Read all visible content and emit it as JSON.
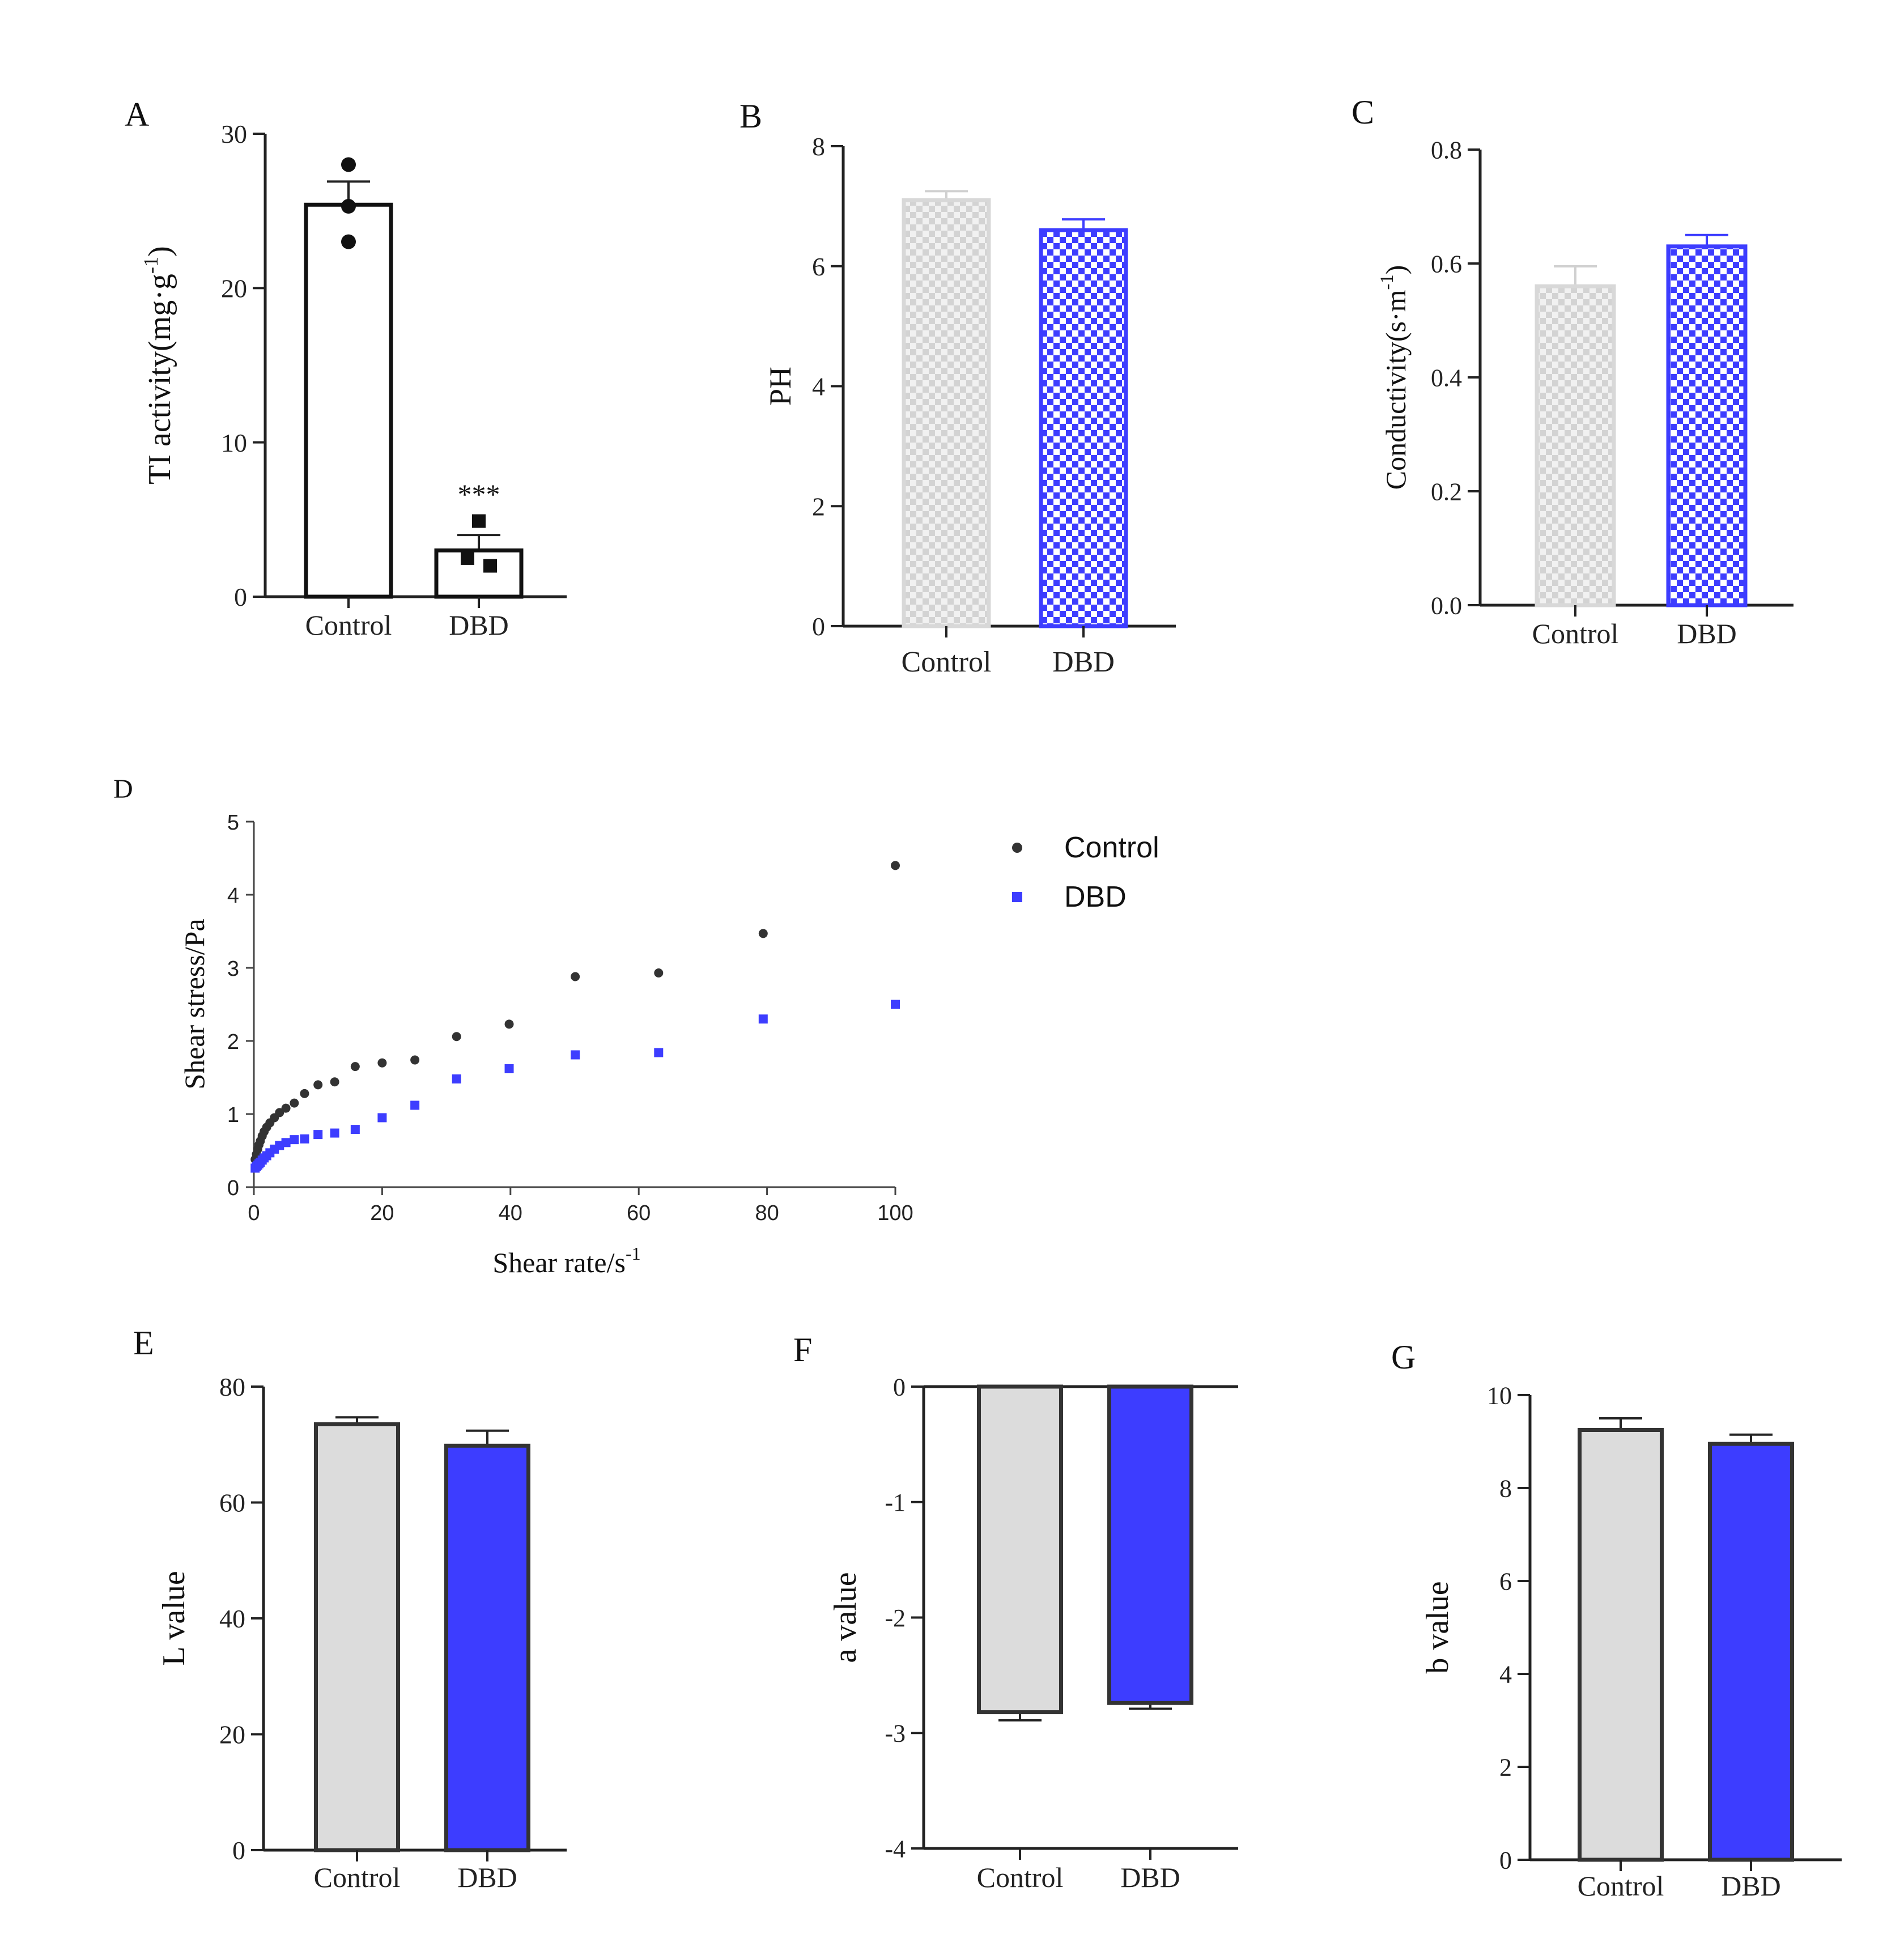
{
  "figure": {
    "panels": [
      "A",
      "B",
      "C",
      "D",
      "E",
      "F",
      "G"
    ]
  },
  "colors": {
    "control_gray": "#dcdcdc",
    "control_check_dark": "#d3d3d3",
    "dbd_blue": "#3d3dff",
    "axis": "#222222",
    "control_point": "#333333",
    "dbd_point": "#3d3dff"
  },
  "chart_data": [
    {
      "panel": "A",
      "type": "bar",
      "categories": [
        "Control",
        "DBD"
      ],
      "values": [
        25.4,
        3.0
      ],
      "errors": [
        1.5,
        1.0
      ],
      "points": [
        [
          28.0,
          25.3,
          23.0
        ],
        [
          4.9,
          2.5,
          2.0
        ]
      ],
      "point_markers": [
        "circle",
        "square"
      ],
      "ylabel": "TI activity(mg·g",
      "ylabel_sup": "-1",
      "ylabel_close": ")",
      "ylim": [
        0,
        30
      ],
      "yticks": [
        "0",
        "10",
        "20",
        "30"
      ],
      "significance": "***",
      "style": "open"
    },
    {
      "panel": "B",
      "type": "bar",
      "categories": [
        "Control",
        "DBD"
      ],
      "values": [
        7.1,
        6.6
      ],
      "errors": [
        0.15,
        0.18
      ],
      "ylabel": "PH",
      "ylim": [
        0,
        8
      ],
      "yticks": [
        "0",
        "2",
        "4",
        "6",
        "8"
      ],
      "style": "checker"
    },
    {
      "panel": "C",
      "type": "bar",
      "categories": [
        "Control",
        "DBD"
      ],
      "values": [
        0.56,
        0.63
      ],
      "errors": [
        0.035,
        0.02
      ],
      "ylabel": "Conductivity(s·m",
      "ylabel_sup": "-1",
      "ylabel_close": ")",
      "ylim": [
        0,
        0.8
      ],
      "yticks": [
        "0.0",
        "0.2",
        "0.4",
        "0.6",
        "0.8"
      ],
      "style": "checker"
    },
    {
      "panel": "D",
      "type": "scatter",
      "xlabel": "Shear rate/s",
      "xlabel_sup": "-1",
      "ylabel": "Shear stress/Pa",
      "xlim": [
        0,
        100
      ],
      "ylim": [
        0,
        5
      ],
      "xticks": [
        "0",
        "20",
        "40",
        "60",
        "80",
        "100"
      ],
      "yticks": [
        "0",
        "1",
        "2",
        "3",
        "4",
        "5"
      ],
      "legend_position": "top-right",
      "series": [
        {
          "name": "Control",
          "x": [
            0.2,
            0.4,
            0.6,
            0.8,
            1.0,
            1.3,
            1.6,
            2.0,
            2.5,
            3.2,
            4.0,
            5.0,
            6.3,
            7.9,
            10.0,
            12.6,
            15.8,
            20.0,
            25.1,
            31.6,
            39.8,
            50.1,
            63.1,
            79.4,
            100
          ],
          "y": [
            0.38,
            0.45,
            0.52,
            0.58,
            0.63,
            0.7,
            0.76,
            0.82,
            0.88,
            0.95,
            1.02,
            1.08,
            1.15,
            1.28,
            1.4,
            1.44,
            1.65,
            1.7,
            1.74,
            2.06,
            2.23,
            2.88,
            2.93,
            3.47,
            4.4
          ]
        },
        {
          "name": "DBD",
          "x": [
            0.2,
            0.4,
            0.6,
            0.8,
            1.0,
            1.3,
            1.6,
            2.0,
            2.5,
            3.2,
            4.0,
            5.0,
            6.3,
            7.9,
            10.0,
            12.6,
            15.8,
            20.0,
            25.1,
            31.6,
            39.8,
            50.1,
            63.1,
            79.4,
            100
          ],
          "y": [
            0.26,
            0.28,
            0.3,
            0.32,
            0.34,
            0.37,
            0.4,
            0.43,
            0.47,
            0.52,
            0.57,
            0.61,
            0.65,
            0.66,
            0.72,
            0.74,
            0.79,
            0.95,
            1.12,
            1.48,
            1.62,
            1.81,
            1.84,
            2.3,
            2.5
          ]
        }
      ]
    },
    {
      "panel": "E",
      "type": "bar",
      "categories": [
        "Control",
        "DBD"
      ],
      "values": [
        73.5,
        69.8
      ],
      "errors": [
        1.2,
        2.6
      ],
      "ylabel": "L value",
      "ylim": [
        0,
        80
      ],
      "yticks": [
        "0",
        "20",
        "40",
        "60",
        "80"
      ],
      "style": "solid"
    },
    {
      "panel": "F",
      "type": "bar",
      "categories": [
        "Control",
        "DBD"
      ],
      "values": [
        -2.82,
        -2.74
      ],
      "errors": [
        0.07,
        0.05
      ],
      "ylabel": "a value",
      "ylim": [
        -4,
        0
      ],
      "yticks": [
        "-4",
        "-3",
        "-2",
        "-1",
        "0"
      ],
      "style": "solid"
    },
    {
      "panel": "G",
      "type": "bar",
      "categories": [
        "Control",
        "DBD"
      ],
      "values": [
        9.25,
        8.95
      ],
      "errors": [
        0.25,
        0.2
      ],
      "ylabel": "b value",
      "ylim": [
        0,
        10
      ],
      "yticks": [
        "0",
        "2",
        "4",
        "6",
        "8",
        "10"
      ],
      "style": "solid"
    }
  ]
}
